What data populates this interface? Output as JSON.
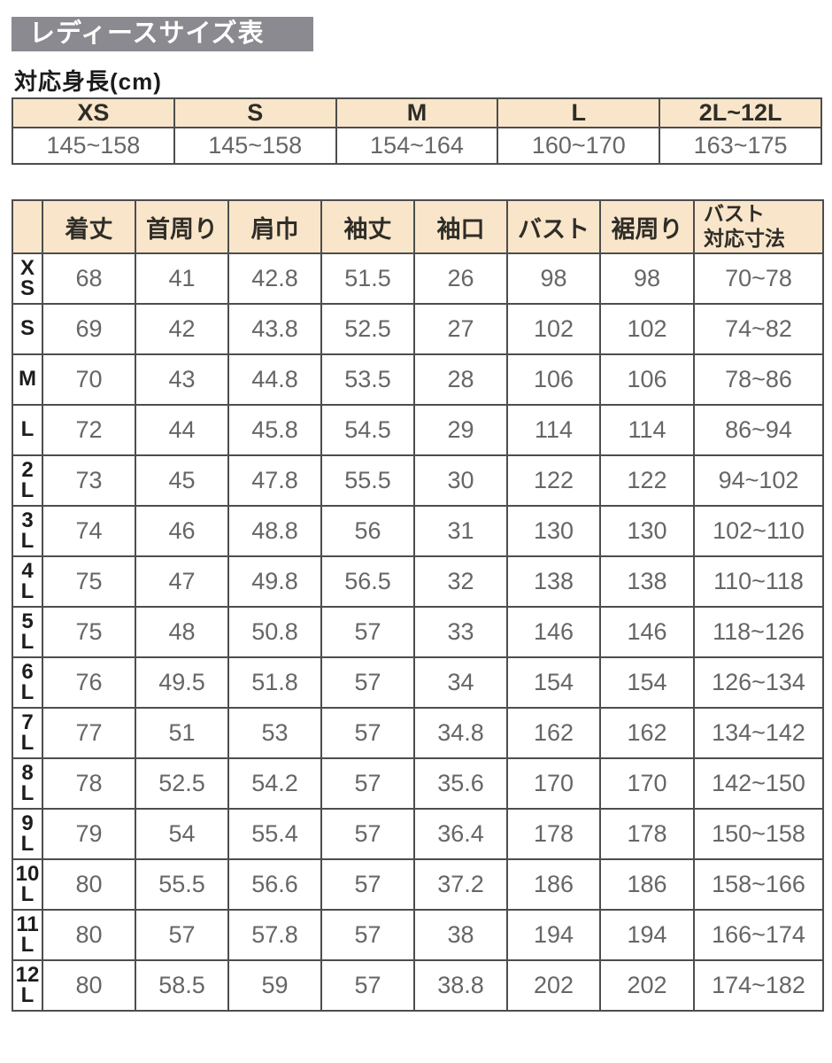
{
  "page": {
    "title": "レディースサイズ表",
    "subtitle": "対応身長(cm)"
  },
  "colors": {
    "title_bar_bg": "#8a8a90",
    "table_header_bg": "#f9e6ca",
    "border": "#4d4d4d",
    "number_text": "#666666",
    "header_text": "#2f2d28"
  },
  "height_table": {
    "columns": [
      "XS",
      "S",
      "M",
      "L",
      "2L~12L"
    ],
    "values": [
      "145~158",
      "145~158",
      "154~164",
      "160~170",
      "163~175"
    ]
  },
  "size_table": {
    "columns": [
      "着丈",
      "首周り",
      "肩巾",
      "袖丈",
      "袖口",
      "バスト",
      "裾周り",
      "バスト\n対応寸法"
    ],
    "rows": [
      {
        "label": "XS",
        "label_lines": [
          "X",
          "S"
        ],
        "values": [
          "68",
          "41",
          "42.8",
          "51.5",
          "26",
          "98",
          "98",
          "70~78"
        ]
      },
      {
        "label": "S",
        "label_lines": [
          "S"
        ],
        "values": [
          "69",
          "42",
          "43.8",
          "52.5",
          "27",
          "102",
          "102",
          "74~82"
        ]
      },
      {
        "label": "M",
        "label_lines": [
          "M"
        ],
        "values": [
          "70",
          "43",
          "44.8",
          "53.5",
          "28",
          "106",
          "106",
          "78~86"
        ]
      },
      {
        "label": "L",
        "label_lines": [
          "L"
        ],
        "values": [
          "72",
          "44",
          "45.8",
          "54.5",
          "29",
          "114",
          "114",
          "86~94"
        ]
      },
      {
        "label": "2L",
        "label_lines": [
          "2",
          "L"
        ],
        "values": [
          "73",
          "45",
          "47.8",
          "55.5",
          "30",
          "122",
          "122",
          "94~102"
        ]
      },
      {
        "label": "3L",
        "label_lines": [
          "3",
          "L"
        ],
        "values": [
          "74",
          "46",
          "48.8",
          "56",
          "31",
          "130",
          "130",
          "102~110"
        ]
      },
      {
        "label": "4L",
        "label_lines": [
          "4",
          "L"
        ],
        "values": [
          "75",
          "47",
          "49.8",
          "56.5",
          "32",
          "138",
          "138",
          "110~118"
        ]
      },
      {
        "label": "5L",
        "label_lines": [
          "5",
          "L"
        ],
        "values": [
          "75",
          "48",
          "50.8",
          "57",
          "33",
          "146",
          "146",
          "118~126"
        ]
      },
      {
        "label": "6L",
        "label_lines": [
          "6",
          "L"
        ],
        "values": [
          "76",
          "49.5",
          "51.8",
          "57",
          "34",
          "154",
          "154",
          "126~134"
        ]
      },
      {
        "label": "7L",
        "label_lines": [
          "7",
          "L"
        ],
        "values": [
          "77",
          "51",
          "53",
          "57",
          "34.8",
          "162",
          "162",
          "134~142"
        ]
      },
      {
        "label": "8L",
        "label_lines": [
          "8",
          "L"
        ],
        "values": [
          "78",
          "52.5",
          "54.2",
          "57",
          "35.6",
          "170",
          "170",
          "142~150"
        ]
      },
      {
        "label": "9L",
        "label_lines": [
          "9",
          "L"
        ],
        "values": [
          "79",
          "54",
          "55.4",
          "57",
          "36.4",
          "178",
          "178",
          "150~158"
        ]
      },
      {
        "label": "10L",
        "label_lines": [
          "10",
          "L"
        ],
        "values": [
          "80",
          "55.5",
          "56.6",
          "57",
          "37.2",
          "186",
          "186",
          "158~166"
        ]
      },
      {
        "label": "11L",
        "label_lines": [
          "11",
          "L"
        ],
        "values": [
          "80",
          "57",
          "57.8",
          "57",
          "38",
          "194",
          "194",
          "166~174"
        ]
      },
      {
        "label": "12L",
        "label_lines": [
          "12",
          "L"
        ],
        "values": [
          "80",
          "58.5",
          "59",
          "57",
          "38.8",
          "202",
          "202",
          "174~182"
        ]
      }
    ]
  }
}
